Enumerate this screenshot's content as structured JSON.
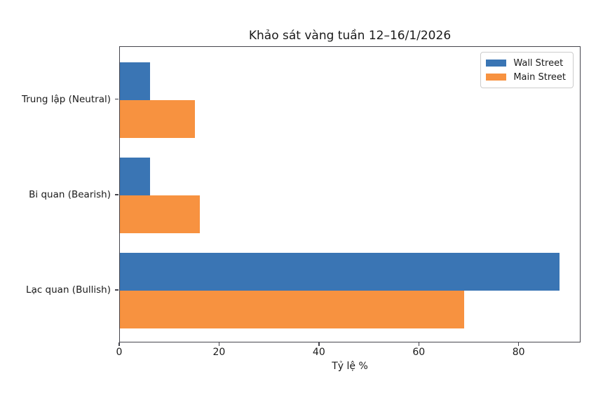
{
  "chart_data": {
    "type": "bar",
    "orientation": "horizontal",
    "title": "Khảo sát vàng tuần 12–16/1/2026",
    "xlabel": "Tỷ lệ %",
    "categories": [
      "Trung lập (Neutral)",
      "Bi quan (Bearish)",
      "Lạc quan (Bullish)"
    ],
    "series": [
      {
        "name": "Wall Street",
        "color": "#3a75b4",
        "values": [
          6,
          6,
          88
        ]
      },
      {
        "name": "Main Street",
        "color": "#f79240",
        "values": [
          15,
          16,
          69
        ]
      }
    ],
    "x_ticks": [
      0,
      20,
      40,
      60,
      80
    ],
    "xlim": [
      0,
      92.4
    ],
    "legend_position": "upper-right",
    "grid": false
  },
  "colors": {
    "text": "#1a1a1a",
    "spine": "#45454d",
    "legend_border": "#cccccc",
    "background": "#ffffff"
  }
}
